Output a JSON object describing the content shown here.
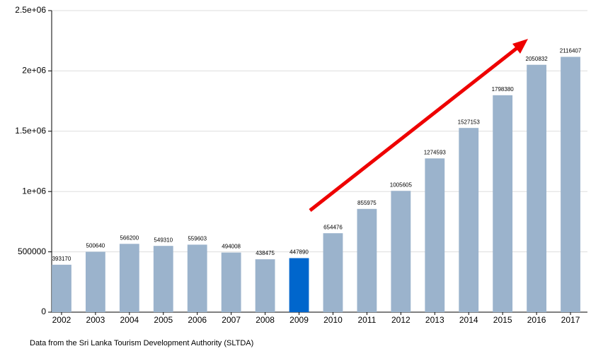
{
  "chart_data": {
    "type": "bar",
    "categories": [
      "2002",
      "2003",
      "2004",
      "2005",
      "2006",
      "2007",
      "2008",
      "2009",
      "2010",
      "2011",
      "2012",
      "2013",
      "2014",
      "2015",
      "2016",
      "2017"
    ],
    "values": [
      393170,
      500640,
      566200,
      549310,
      559603,
      494008,
      438475,
      447890,
      654476,
      855975,
      1005605,
      1274593,
      1527153,
      1798380,
      2050832,
      2116407
    ],
    "colors": [
      "#9bb3cc",
      "#9bb3cc",
      "#9bb3cc",
      "#9bb3cc",
      "#9bb3cc",
      "#9bb3cc",
      "#9bb3cc",
      "#0066cc",
      "#9bb3cc",
      "#9bb3cc",
      "#9bb3cc",
      "#9bb3cc",
      "#9bb3cc",
      "#9bb3cc",
      "#9bb3cc",
      "#9bb3cc"
    ],
    "ylim": [
      0,
      2500000
    ],
    "yticks": [
      0,
      500000,
      {
        "value": 1000000,
        "label": "1e+06"
      },
      {
        "value": 1500000,
        "label": "1.5e+06"
      },
      {
        "value": 2000000,
        "label": "2e+06"
      },
      {
        "value": 2500000,
        "label": "2.5e+06"
      }
    ],
    "grid": true,
    "caption": "Data from the Sri Lanka Tourism Development Authority (SLTDA)"
  }
}
